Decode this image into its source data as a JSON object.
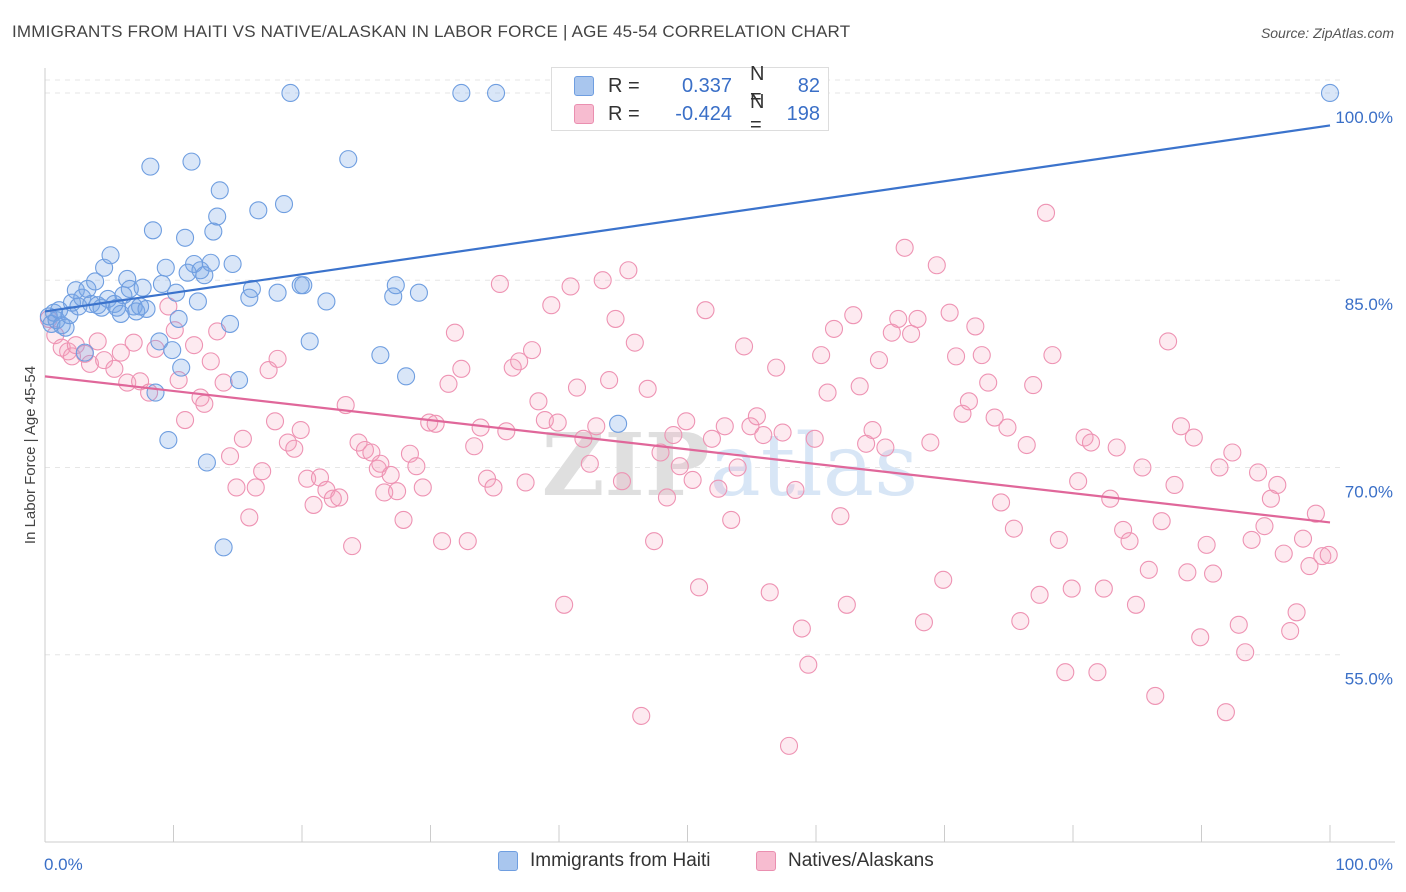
{
  "title": "IMMIGRANTS FROM HAITI VS NATIVE/ALASKAN IN LABOR FORCE | AGE 45-54 CORRELATION CHART",
  "source": "Source: ZipAtlas.com",
  "watermark": "ZIPatlas",
  "legend": {
    "r_label": "R =",
    "n_label": "N =",
    "rows": [
      {
        "r": "0.337",
        "n": "82",
        "fill": "#a9c6ee",
        "stroke": "#6f9ee0"
      },
      {
        "r": "-0.424",
        "n": "198",
        "fill": "#f7bcd0",
        "stroke": "#ea8fb0"
      }
    ]
  },
  "colors": {
    "blue_fill": "rgba(120,166,230,0.28)",
    "blue_stroke": "#6f9ee0",
    "blue_line": "#3b73cc",
    "pink_fill": "rgba(244,160,188,0.22)",
    "pink_stroke": "#ee93b3",
    "pink_line": "#e0679a",
    "axis_label": "#3a6fc7",
    "grid": "#e6e6e6"
  },
  "chart_data": {
    "type": "scatter",
    "title": "IMMIGRANTS FROM HAITI VS NATIVE/ALASKAN IN LABOR FORCE | AGE 45-54 CORRELATION CHART",
    "xlabel": "",
    "ylabel": "In Labor Force | Age 45-54",
    "xlim": [
      0,
      100
    ],
    "ylim": [
      40,
      102
    ],
    "x_tick_labels": [
      "0.0%",
      "100.0%"
    ],
    "y_ticks": [
      55,
      70,
      85,
      100
    ],
    "y_tick_labels": [
      "55.0%",
      "70.0%",
      "85.0%",
      "100.0%"
    ],
    "legend_position": "top-center",
    "series": [
      {
        "name": "Immigrants from Haiti",
        "color": "#6f9ee0",
        "trend": {
          "x": [
            0,
            100
          ],
          "y": [
            82.5,
            97.4
          ]
        },
        "points": [
          [
            0.3,
            82.1
          ],
          [
            0.5,
            81.5
          ],
          [
            0.7,
            82.4
          ],
          [
            0.9,
            81.8
          ],
          [
            1.1,
            82.6
          ],
          [
            1.3,
            81.4
          ],
          [
            1.6,
            81.2
          ],
          [
            1.9,
            82.2
          ],
          [
            2.1,
            83.2
          ],
          [
            2.4,
            84.2
          ],
          [
            2.6,
            82.9
          ],
          [
            2.9,
            83.6
          ],
          [
            3.1,
            79.2
          ],
          [
            3.3,
            84.3
          ],
          [
            3.6,
            83.1
          ],
          [
            3.9,
            84.9
          ],
          [
            4.1,
            83.0
          ],
          [
            4.4,
            82.8
          ],
          [
            4.6,
            86.0
          ],
          [
            4.9,
            83.5
          ],
          [
            5.1,
            87.0
          ],
          [
            5.4,
            83.1
          ],
          [
            5.6,
            82.8
          ],
          [
            5.9,
            82.3
          ],
          [
            6.1,
            83.8
          ],
          [
            6.4,
            85.1
          ],
          [
            6.6,
            84.3
          ],
          [
            6.9,
            82.9
          ],
          [
            7.1,
            82.5
          ],
          [
            7.4,
            82.9
          ],
          [
            7.6,
            84.4
          ],
          [
            7.9,
            82.7
          ],
          [
            8.2,
            94.1
          ],
          [
            8.4,
            89.0
          ],
          [
            8.6,
            76.0
          ],
          [
            8.9,
            80.1
          ],
          [
            9.1,
            84.7
          ],
          [
            9.4,
            86.0
          ],
          [
            9.6,
            72.2
          ],
          [
            9.9,
            79.4
          ],
          [
            10.2,
            84.0
          ],
          [
            10.4,
            81.9
          ],
          [
            10.6,
            78.0
          ],
          [
            10.9,
            88.4
          ],
          [
            11.1,
            85.6
          ],
          [
            11.4,
            94.5
          ],
          [
            11.6,
            86.3
          ],
          [
            11.9,
            83.3
          ],
          [
            12.1,
            85.8
          ],
          [
            12.4,
            85.4
          ],
          [
            12.6,
            70.4
          ],
          [
            12.9,
            86.4
          ],
          [
            13.1,
            88.9
          ],
          [
            13.4,
            90.1
          ],
          [
            13.6,
            92.2
          ],
          [
            13.9,
            63.6
          ],
          [
            14.4,
            81.5
          ],
          [
            14.6,
            86.3
          ],
          [
            15.1,
            77.0
          ],
          [
            15.9,
            83.6
          ],
          [
            16.1,
            84.3
          ],
          [
            16.6,
            90.6
          ],
          [
            18.1,
            84.0
          ],
          [
            18.6,
            91.1
          ],
          [
            19.1,
            100.0
          ],
          [
            19.9,
            84.6
          ],
          [
            20.1,
            84.6
          ],
          [
            20.6,
            80.1
          ],
          [
            21.9,
            83.3
          ],
          [
            23.6,
            94.7
          ],
          [
            26.1,
            79.0
          ],
          [
            27.1,
            83.7
          ],
          [
            27.3,
            84.6
          ],
          [
            28.1,
            77.3
          ],
          [
            29.1,
            84.0
          ],
          [
            32.4,
            100.0
          ],
          [
            35.1,
            100.0
          ],
          [
            44.6,
            73.5
          ],
          [
            100.0,
            100.0
          ]
        ]
      },
      {
        "name": "Natives/Alaskans",
        "color": "#ee93b3",
        "trend": {
          "x": [
            0,
            100
          ],
          "y": [
            77.3,
            65.6
          ]
        },
        "points": [
          [
            0.3,
            81.9
          ],
          [
            0.8,
            80.6
          ],
          [
            1.3,
            79.6
          ],
          [
            1.8,
            79.3
          ],
          [
            2.1,
            78.9
          ],
          [
            2.4,
            79.8
          ],
          [
            3.1,
            79.1
          ],
          [
            3.5,
            78.3
          ],
          [
            4.1,
            80.1
          ],
          [
            4.6,
            78.6
          ],
          [
            5.4,
            77.9
          ],
          [
            5.9,
            79.2
          ],
          [
            6.4,
            76.8
          ],
          [
            6.9,
            80.0
          ],
          [
            7.4,
            76.9
          ],
          [
            8.1,
            76.0
          ],
          [
            8.6,
            79.5
          ],
          [
            9.6,
            82.9
          ],
          [
            10.1,
            81.0
          ],
          [
            10.4,
            77.0
          ],
          [
            10.9,
            73.8
          ],
          [
            11.6,
            79.8
          ],
          [
            12.1,
            75.6
          ],
          [
            12.4,
            75.1
          ],
          [
            12.9,
            78.5
          ],
          [
            13.4,
            80.9
          ],
          [
            13.9,
            76.8
          ],
          [
            14.4,
            70.9
          ],
          [
            14.9,
            68.4
          ],
          [
            15.4,
            72.3
          ],
          [
            15.9,
            66.0
          ],
          [
            16.4,
            68.4
          ],
          [
            16.9,
            69.7
          ],
          [
            17.4,
            77.8
          ],
          [
            17.9,
            73.7
          ],
          [
            18.1,
            78.7
          ],
          [
            18.9,
            72.0
          ],
          [
            19.4,
            71.5
          ],
          [
            19.9,
            73.0
          ],
          [
            20.4,
            69.1
          ],
          [
            20.9,
            67.0
          ],
          [
            21.4,
            69.2
          ],
          [
            21.9,
            68.2
          ],
          [
            22.4,
            67.5
          ],
          [
            22.9,
            67.6
          ],
          [
            23.4,
            75.0
          ],
          [
            23.9,
            63.7
          ],
          [
            24.4,
            72.0
          ],
          [
            24.9,
            71.4
          ],
          [
            25.4,
            71.2
          ],
          [
            25.9,
            69.9
          ],
          [
            26.1,
            70.3
          ],
          [
            26.4,
            68.0
          ],
          [
            26.9,
            69.4
          ],
          [
            27.4,
            68.1
          ],
          [
            27.9,
            65.8
          ],
          [
            28.4,
            71.1
          ],
          [
            28.9,
            70.1
          ],
          [
            29.4,
            68.4
          ],
          [
            29.9,
            73.6
          ],
          [
            30.4,
            73.5
          ],
          [
            30.9,
            64.1
          ],
          [
            31.4,
            76.7
          ],
          [
            31.9,
            80.8
          ],
          [
            32.4,
            77.9
          ],
          [
            32.9,
            64.1
          ],
          [
            33.4,
            71.7
          ],
          [
            33.9,
            73.2
          ],
          [
            34.4,
            69.1
          ],
          [
            34.9,
            68.4
          ],
          [
            35.4,
            84.7
          ],
          [
            35.9,
            72.9
          ],
          [
            36.4,
            78.0
          ],
          [
            36.9,
            78.5
          ],
          [
            37.4,
            68.8
          ],
          [
            37.9,
            79.4
          ],
          [
            38.4,
            75.3
          ],
          [
            38.9,
            73.8
          ],
          [
            39.4,
            83.0
          ],
          [
            39.9,
            73.6
          ],
          [
            40.4,
            59.0
          ],
          [
            40.9,
            84.5
          ],
          [
            41.4,
            76.4
          ],
          [
            41.9,
            72.3
          ],
          [
            42.4,
            70.3
          ],
          [
            42.9,
            73.3
          ],
          [
            43.4,
            85.0
          ],
          [
            43.9,
            77.0
          ],
          [
            44.4,
            81.9
          ],
          [
            44.9,
            68.9
          ],
          [
            45.4,
            85.8
          ],
          [
            45.9,
            80.0
          ],
          [
            46.4,
            50.1
          ],
          [
            46.9,
            76.3
          ],
          [
            47.4,
            64.1
          ],
          [
            47.9,
            71.2
          ],
          [
            48.4,
            67.6
          ],
          [
            48.9,
            72.6
          ],
          [
            49.4,
            70.1
          ],
          [
            49.9,
            73.7
          ],
          [
            50.4,
            69.0
          ],
          [
            50.9,
            60.4
          ],
          [
            51.4,
            82.6
          ],
          [
            51.9,
            72.3
          ],
          [
            52.4,
            68.3
          ],
          [
            52.9,
            73.3
          ],
          [
            53.4,
            65.8
          ],
          [
            53.9,
            70.0
          ],
          [
            54.4,
            79.7
          ],
          [
            54.9,
            73.3
          ],
          [
            55.4,
            74.1
          ],
          [
            55.9,
            72.6
          ],
          [
            56.4,
            60.0
          ],
          [
            56.9,
            78.0
          ],
          [
            57.4,
            72.8
          ],
          [
            57.9,
            47.7
          ],
          [
            58.4,
            68.2
          ],
          [
            58.9,
            57.1
          ],
          [
            59.4,
            54.2
          ],
          [
            59.9,
            72.3
          ],
          [
            60.4,
            79.0
          ],
          [
            60.9,
            76.0
          ],
          [
            61.4,
            81.1
          ],
          [
            61.9,
            66.1
          ],
          [
            62.4,
            59.0
          ],
          [
            62.9,
            82.2
          ],
          [
            63.4,
            76.5
          ],
          [
            63.9,
            71.9
          ],
          [
            64.4,
            73.0
          ],
          [
            64.9,
            78.6
          ],
          [
            65.4,
            71.6
          ],
          [
            65.9,
            80.8
          ],
          [
            66.4,
            81.9
          ],
          [
            66.9,
            87.6
          ],
          [
            67.4,
            80.7
          ],
          [
            67.9,
            81.9
          ],
          [
            68.4,
            57.6
          ],
          [
            68.9,
            72.0
          ],
          [
            69.4,
            86.2
          ],
          [
            69.9,
            61.0
          ],
          [
            70.4,
            82.4
          ],
          [
            70.9,
            78.9
          ],
          [
            71.4,
            74.3
          ],
          [
            71.9,
            75.3
          ],
          [
            72.4,
            81.3
          ],
          [
            72.9,
            79.0
          ],
          [
            73.4,
            76.8
          ],
          [
            73.9,
            74.0
          ],
          [
            74.4,
            67.2
          ],
          [
            74.9,
            73.2
          ],
          [
            75.4,
            65.1
          ],
          [
            75.9,
            57.7
          ],
          [
            76.4,
            71.8
          ],
          [
            76.9,
            76.6
          ],
          [
            77.4,
            59.8
          ],
          [
            77.9,
            90.4
          ],
          [
            78.4,
            79.0
          ],
          [
            78.9,
            64.2
          ],
          [
            79.4,
            53.6
          ],
          [
            79.9,
            60.3
          ],
          [
            80.4,
            68.9
          ],
          [
            80.9,
            72.4
          ],
          [
            81.4,
            72.0
          ],
          [
            81.9,
            53.6
          ],
          [
            82.4,
            60.3
          ],
          [
            82.9,
            67.5
          ],
          [
            83.4,
            71.6
          ],
          [
            83.9,
            65.0
          ],
          [
            84.4,
            64.1
          ],
          [
            84.9,
            59.0
          ],
          [
            85.4,
            70.0
          ],
          [
            85.9,
            61.8
          ],
          [
            86.4,
            51.7
          ],
          [
            86.9,
            65.7
          ],
          [
            87.4,
            80.1
          ],
          [
            87.9,
            68.6
          ],
          [
            88.4,
            73.3
          ],
          [
            88.9,
            61.6
          ],
          [
            89.4,
            72.4
          ],
          [
            89.9,
            56.4
          ],
          [
            90.4,
            63.8
          ],
          [
            90.9,
            61.5
          ],
          [
            91.4,
            70.0
          ],
          [
            91.9,
            50.4
          ],
          [
            92.4,
            71.2
          ],
          [
            92.9,
            57.4
          ],
          [
            93.4,
            55.2
          ],
          [
            93.9,
            64.2
          ],
          [
            94.4,
            69.6
          ],
          [
            94.9,
            65.3
          ],
          [
            95.4,
            67.5
          ],
          [
            95.9,
            68.6
          ],
          [
            96.4,
            63.1
          ],
          [
            96.9,
            56.9
          ],
          [
            97.4,
            58.4
          ],
          [
            97.9,
            64.3
          ],
          [
            98.4,
            62.1
          ],
          [
            98.9,
            66.3
          ],
          [
            99.4,
            62.9
          ],
          [
            99.9,
            63.0
          ]
        ]
      }
    ]
  }
}
